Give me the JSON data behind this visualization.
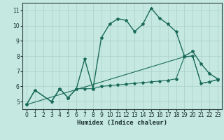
{
  "title": "",
  "xlabel": "Humidex (Indice chaleur)",
  "xlim": [
    -0.5,
    23.5
  ],
  "ylim": [
    4.5,
    11.5
  ],
  "xticks": [
    0,
    1,
    2,
    3,
    4,
    5,
    6,
    7,
    8,
    9,
    10,
    11,
    12,
    13,
    14,
    15,
    16,
    17,
    18,
    19,
    20,
    21,
    22,
    23
  ],
  "yticks": [
    5,
    6,
    7,
    8,
    9,
    10,
    11
  ],
  "bg_color": "#c5e8e0",
  "grid_color": "#aed4cc",
  "line_color": "#1a6b5a",
  "curve1_x": [
    0,
    1,
    3,
    4,
    5,
    6,
    7,
    8,
    9,
    10,
    11,
    12,
    13,
    14,
    15,
    16,
    17,
    18,
    19,
    20,
    21,
    22,
    23
  ],
  "curve1_y": [
    4.8,
    5.75,
    5.0,
    5.85,
    5.25,
    5.85,
    7.8,
    5.85,
    9.2,
    10.1,
    10.45,
    10.35,
    9.6,
    10.1,
    11.15,
    10.5,
    10.1,
    9.6,
    8.0,
    8.3,
    7.5,
    6.85,
    6.5
  ],
  "curve2_x": [
    0,
    1,
    3,
    4,
    5,
    6,
    7,
    8,
    9,
    10,
    11,
    12,
    13,
    14,
    15,
    16,
    17,
    18,
    19,
    20,
    21,
    22,
    23
  ],
  "curve2_y": [
    4.8,
    5.75,
    5.0,
    5.85,
    5.25,
    5.85,
    5.85,
    5.85,
    6.0,
    6.05,
    6.1,
    6.15,
    6.2,
    6.25,
    6.3,
    6.35,
    6.4,
    6.5,
    7.95,
    8.0,
    6.2,
    6.3,
    6.45
  ],
  "curve3_x": [
    0,
    19,
    20,
    21,
    22,
    23
  ],
  "curve3_y": [
    4.8,
    7.95,
    8.0,
    6.2,
    6.3,
    6.45
  ]
}
